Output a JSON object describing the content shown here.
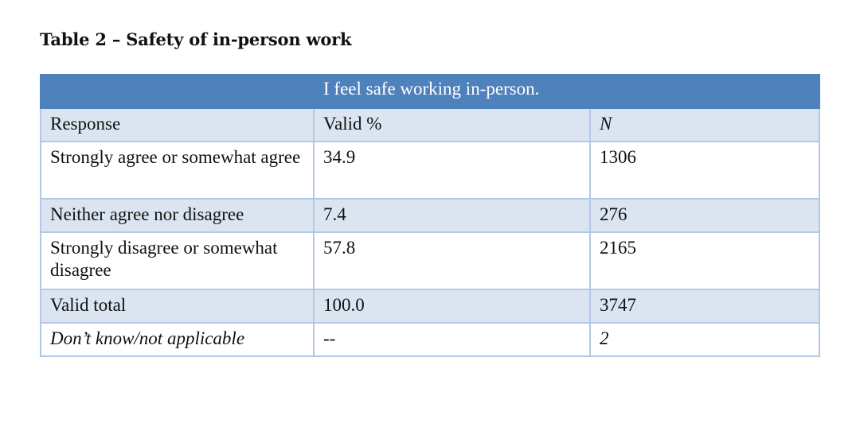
{
  "caption": "Table 2 – Safety of in-person work",
  "table": {
    "title": "I feel safe working in-person.",
    "header": {
      "response": "Response",
      "valid_pct": "Valid %",
      "n": "N"
    },
    "rows": [
      {
        "response": "Strongly agree or somewhat agree",
        "valid_pct": "34.9",
        "n": "1306"
      },
      {
        "response": "Neither agree nor disagree",
        "valid_pct": "7.4",
        "n": "276"
      },
      {
        "response": "Strongly disagree or somewhat disagree",
        "valid_pct": "57.8",
        "n": "2165"
      },
      {
        "response": "Valid total",
        "valid_pct": "100.0",
        "n": "3747"
      },
      {
        "response": "Don’t know/not applicable",
        "valid_pct": "--",
        "n": "2"
      }
    ]
  }
}
